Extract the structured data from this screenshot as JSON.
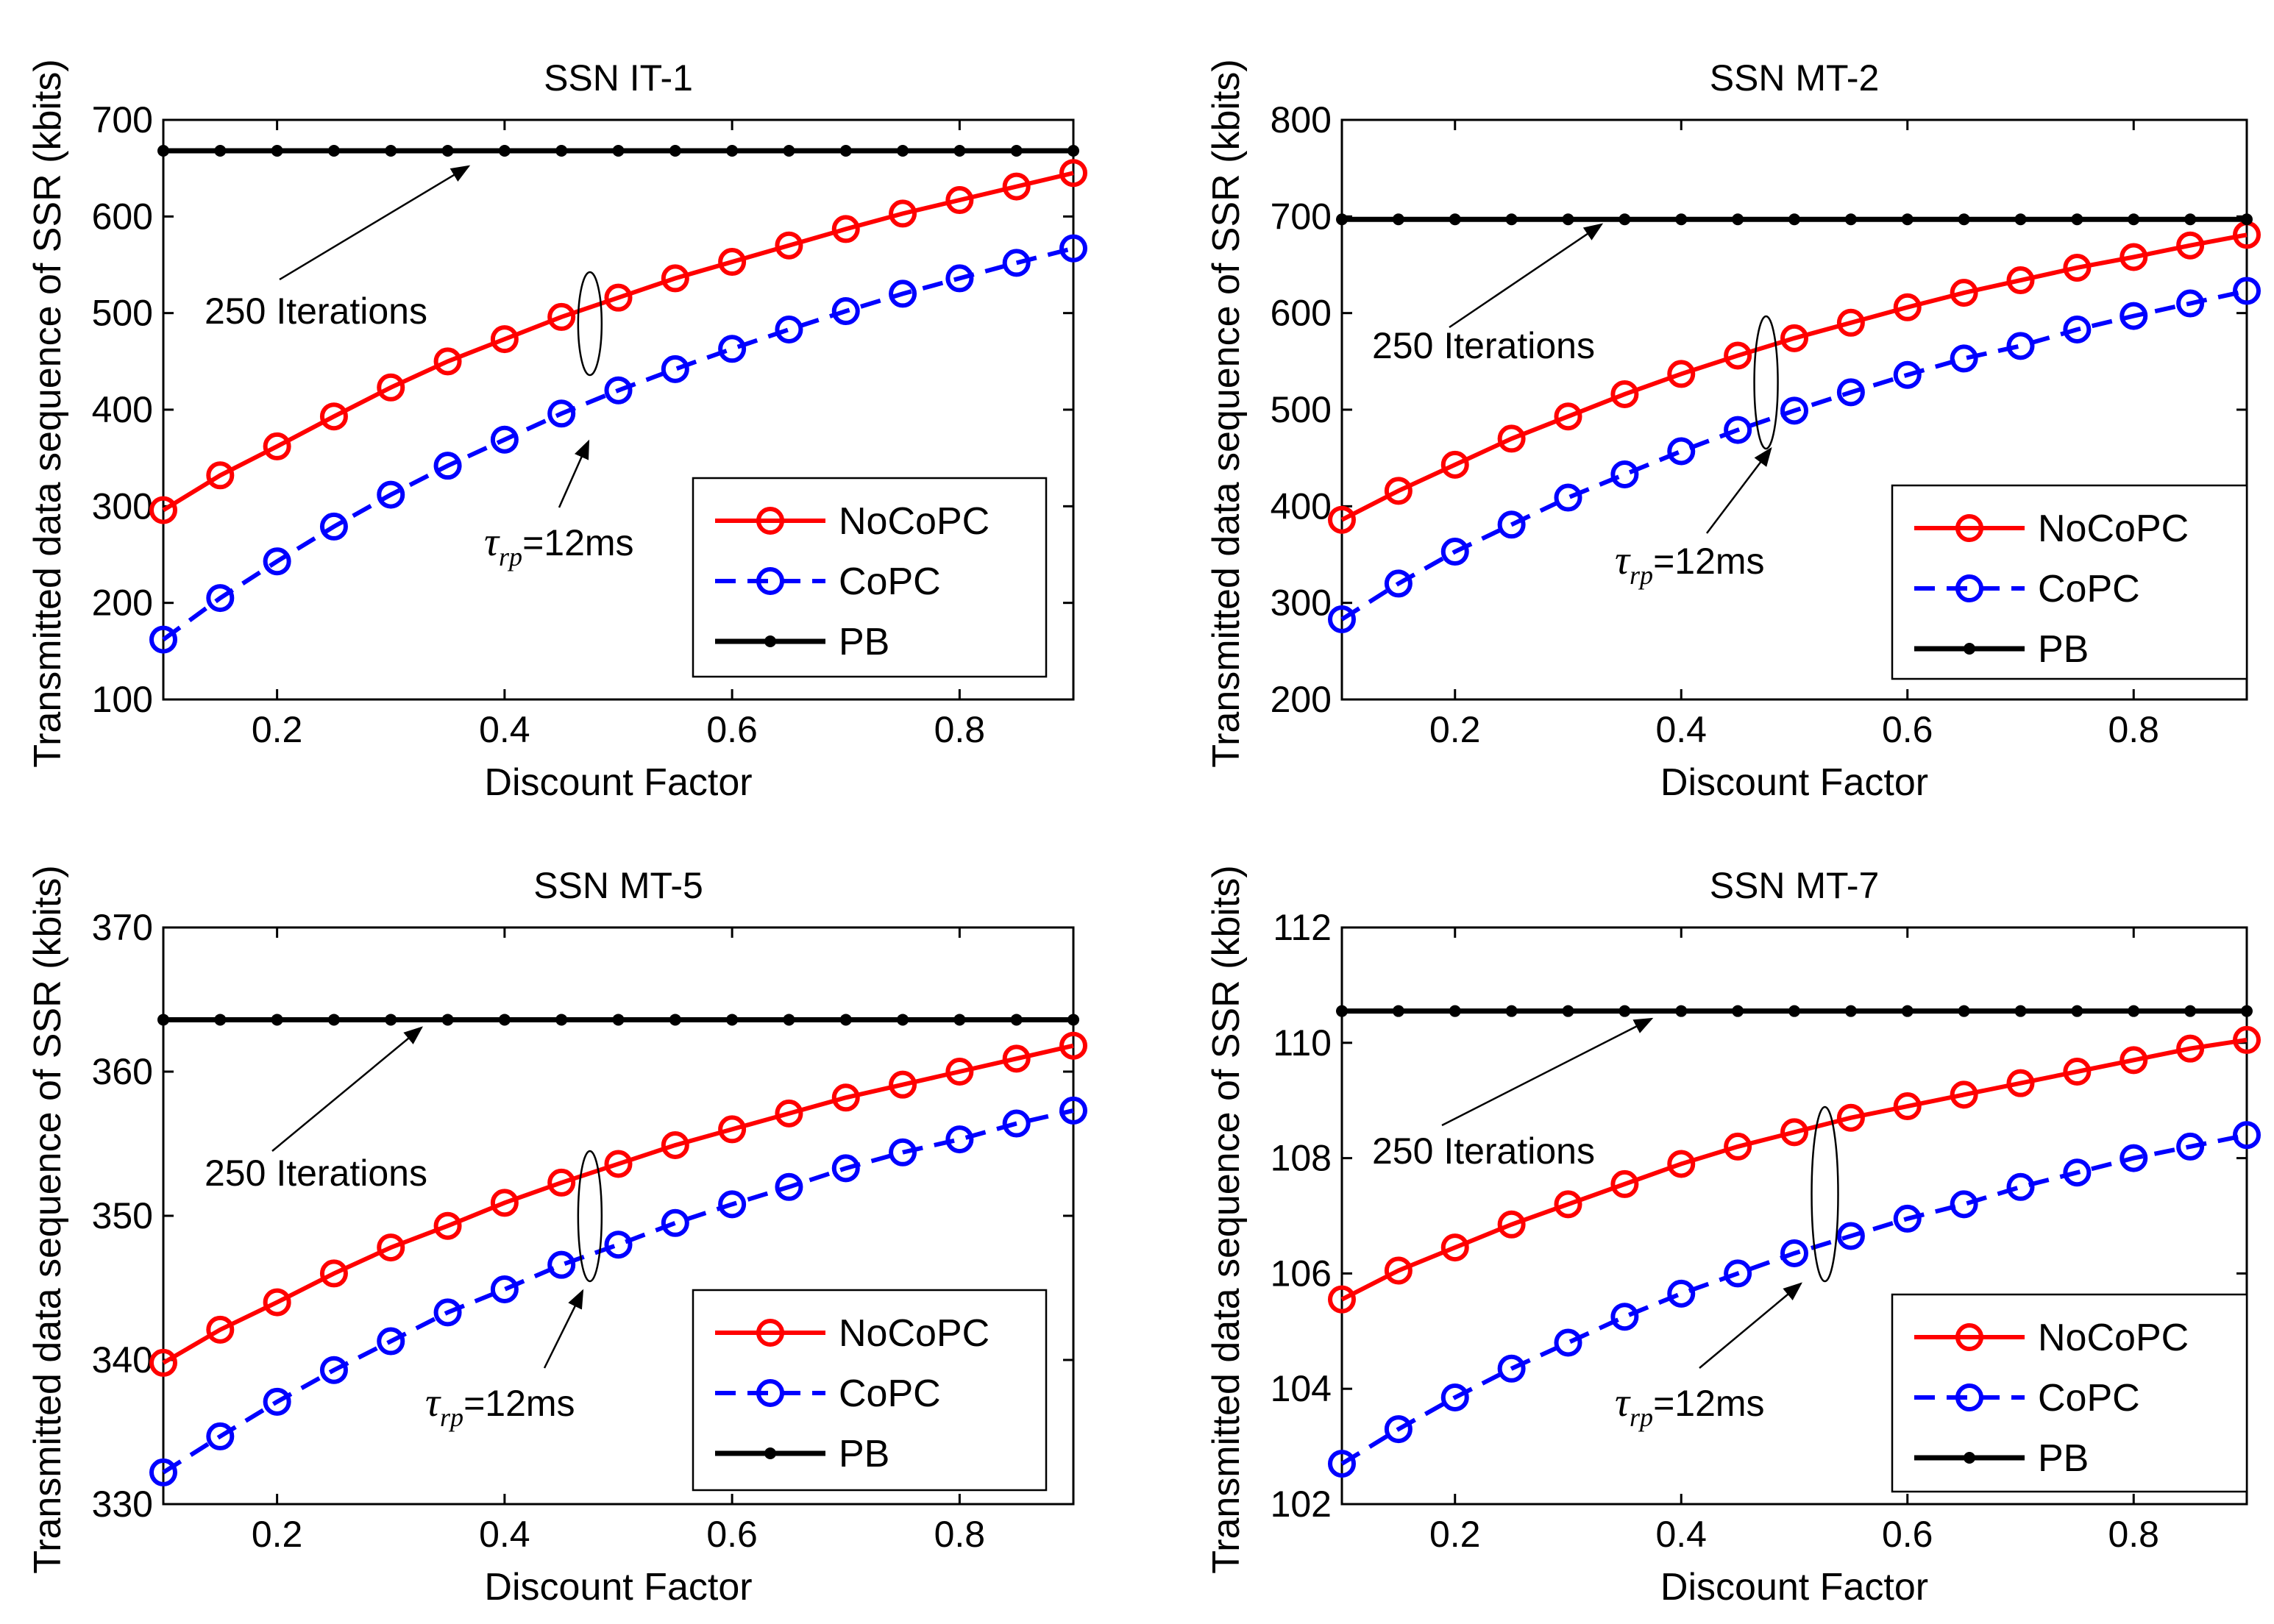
{
  "chart_data": [
    {
      "type": "line",
      "title": "SSN IT-1",
      "xlabel": "Discount Factor",
      "ylabel": "Transmitted data sequence of SSR (kbits)",
      "xlim": [
        0.1,
        0.9
      ],
      "ylim": [
        100,
        700
      ],
      "x_ticks": [
        0.2,
        0.4,
        0.6,
        0.8
      ],
      "x_tick_labels": [
        "0.2",
        "0.4",
        "0.6",
        "0.8"
      ],
      "y_ticks": [
        100,
        200,
        300,
        400,
        500,
        600,
        700
      ],
      "y_tick_labels": [
        "100",
        "200",
        "300",
        "400",
        "500",
        "600",
        "700"
      ],
      "x": [
        0.1,
        0.15,
        0.2,
        0.25,
        0.3,
        0.35,
        0.4,
        0.45,
        0.5,
        0.55,
        0.6,
        0.65,
        0.7,
        0.75,
        0.8,
        0.85,
        0.9
      ],
      "series": [
        {
          "name": "NoCoPC",
          "color": "#ff0000",
          "values": [
            296,
            332,
            362,
            393,
            423,
            450,
            473,
            496,
            516,
            536,
            553,
            570,
            587,
            603,
            617,
            631,
            645
          ]
        },
        {
          "name": "CoPC",
          "color": "#0000ff",
          "values": [
            162,
            205,
            243,
            279,
            312,
            342,
            369,
            396,
            420,
            442,
            463,
            483,
            502,
            520,
            536,
            552,
            567
          ]
        },
        {
          "name": "PB",
          "color": "#000000",
          "values": [
            668,
            668,
            668,
            668,
            668,
            668,
            668,
            668,
            668,
            668,
            668,
            668,
            668,
            668,
            668,
            668,
            668
          ]
        }
      ],
      "annotations": {
        "iterations_text": "250 Iterations",
        "tau_symbol": "τ",
        "tau_sub": "rp",
        "tau_value": "=12ms"
      }
    },
    {
      "type": "line",
      "title": "SSN MT-2",
      "xlabel": "Discount Factor",
      "ylabel": "Transmitted data sequence of SSR (kbits)",
      "xlim": [
        0.1,
        0.9
      ],
      "ylim": [
        200,
        800
      ],
      "x_ticks": [
        0.2,
        0.4,
        0.6,
        0.8
      ],
      "x_tick_labels": [
        "0.2",
        "0.4",
        "0.6",
        "0.8"
      ],
      "y_ticks": [
        200,
        300,
        400,
        500,
        600,
        700,
        800
      ],
      "y_tick_labels": [
        "200",
        "300",
        "400",
        "500",
        "600",
        "700",
        "800"
      ],
      "x": [
        0.1,
        0.15,
        0.2,
        0.25,
        0.3,
        0.35,
        0.4,
        0.45,
        0.5,
        0.55,
        0.6,
        0.65,
        0.7,
        0.75,
        0.8,
        0.85,
        0.9
      ],
      "series": [
        {
          "name": "NoCoPC",
          "color": "#ff0000",
          "values": [
            386,
            416,
            443,
            470,
            493,
            516,
            537,
            556,
            574,
            590,
            606,
            621,
            634,
            647,
            658,
            670,
            681
          ]
        },
        {
          "name": "CoPC",
          "color": "#0000ff",
          "values": [
            283,
            320,
            353,
            381,
            409,
            433,
            457,
            479,
            499,
            518,
            536,
            553,
            566,
            583,
            597,
            610,
            623
          ]
        },
        {
          "name": "PB",
          "color": "#000000",
          "values": [
            697,
            697,
            697,
            697,
            697,
            697,
            697,
            697,
            697,
            697,
            697,
            697,
            697,
            697,
            697,
            697,
            697
          ]
        }
      ],
      "annotations": {
        "iterations_text": "250 Iterations",
        "tau_symbol": "τ",
        "tau_sub": "rp",
        "tau_value": "=12ms"
      }
    },
    {
      "type": "line",
      "title": "SSN MT-5",
      "xlabel": "Discount Factor",
      "ylabel": "Transmitted data sequence of SSR (kbits)",
      "xlim": [
        0.1,
        0.9
      ],
      "ylim": [
        330,
        370
      ],
      "x_ticks": [
        0.2,
        0.4,
        0.6,
        0.8
      ],
      "x_tick_labels": [
        "0.2",
        "0.4",
        "0.6",
        "0.8"
      ],
      "y_ticks": [
        330,
        340,
        350,
        360,
        370
      ],
      "y_tick_labels": [
        "330",
        "340",
        "350",
        "360",
        "370"
      ],
      "x": [
        0.1,
        0.15,
        0.2,
        0.25,
        0.3,
        0.35,
        0.4,
        0.45,
        0.5,
        0.55,
        0.6,
        0.65,
        0.7,
        0.75,
        0.8,
        0.85,
        0.9
      ],
      "series": [
        {
          "name": "NoCoPC",
          "color": "#ff0000",
          "values": [
            339.8,
            342.1,
            344.0,
            346.0,
            347.8,
            349.3,
            350.9,
            352.3,
            353.6,
            354.9,
            356.0,
            357.1,
            358.2,
            359.1,
            360.0,
            360.9,
            361.8
          ]
        },
        {
          "name": "CoPC",
          "color": "#0000ff",
          "values": [
            332.2,
            334.7,
            337.1,
            339.3,
            341.3,
            343.3,
            344.9,
            346.6,
            348.0,
            349.5,
            350.8,
            352.0,
            353.3,
            354.4,
            355.3,
            356.4,
            357.3
          ]
        },
        {
          "name": "PB",
          "color": "#000000",
          "values": [
            363.6,
            363.6,
            363.6,
            363.6,
            363.6,
            363.6,
            363.6,
            363.6,
            363.6,
            363.6,
            363.6,
            363.6,
            363.6,
            363.6,
            363.6,
            363.6,
            363.6
          ]
        }
      ],
      "annotations": {
        "iterations_text": "250 Iterations",
        "tau_symbol": "τ",
        "tau_sub": "rp",
        "tau_value": "=12ms"
      }
    },
    {
      "type": "line",
      "title": "SSN MT-7",
      "xlabel": "Discount Factor",
      "ylabel": "Transmitted data sequence of SSR (kbits)",
      "xlim": [
        0.1,
        0.9
      ],
      "ylim": [
        102,
        112
      ],
      "x_ticks": [
        0.2,
        0.4,
        0.6,
        0.8
      ],
      "x_tick_labels": [
        "0.2",
        "0.4",
        "0.6",
        "0.8"
      ],
      "y_ticks": [
        102,
        104,
        106,
        108,
        110,
        112
      ],
      "y_tick_labels": [
        "102",
        "104",
        "106",
        "108",
        "110",
        "112"
      ],
      "x": [
        0.1,
        0.15,
        0.2,
        0.25,
        0.3,
        0.35,
        0.4,
        0.45,
        0.5,
        0.55,
        0.6,
        0.65,
        0.7,
        0.75,
        0.8,
        0.85,
        0.9
      ],
      "series": [
        {
          "name": "NoCoPC",
          "color": "#ff0000",
          "values": [
            105.55,
            106.05,
            106.45,
            106.85,
            107.2,
            107.55,
            107.9,
            108.2,
            108.45,
            108.7,
            108.9,
            109.1,
            109.3,
            109.5,
            109.7,
            109.9,
            110.05
          ]
        },
        {
          "name": "CoPC",
          "color": "#0000ff",
          "values": [
            102.7,
            103.3,
            103.85,
            104.35,
            104.8,
            105.25,
            105.65,
            106.0,
            106.35,
            106.65,
            106.95,
            107.2,
            107.5,
            107.75,
            108.0,
            108.2,
            108.4
          ]
        },
        {
          "name": "PB",
          "color": "#000000",
          "values": [
            110.55,
            110.55,
            110.55,
            110.55,
            110.55,
            110.55,
            110.55,
            110.55,
            110.55,
            110.55,
            110.55,
            110.55,
            110.55,
            110.55,
            110.55,
            110.55,
            110.55
          ]
        }
      ],
      "annotations": {
        "iterations_text": "250 Iterations",
        "tau_symbol": "τ",
        "tau_sub": "rp",
        "tau_value": "=12ms"
      }
    }
  ]
}
